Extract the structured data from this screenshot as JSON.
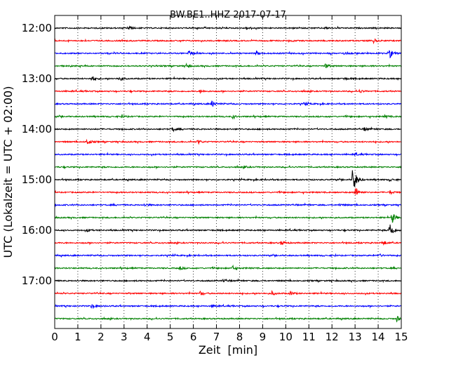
{
  "chart_data": {
    "type": "line",
    "title": "BW.BE1..HHZ 2017-07-17",
    "xlabel": "Zeit  [min]",
    "ylabel": "UTC (Lokalzeit = UTC + 02:00)",
    "xlim": [
      0,
      15
    ],
    "x_ticks": [
      "0",
      "1",
      "2",
      "3",
      "4",
      "5",
      "6",
      "7",
      "8",
      "9",
      "10",
      "11",
      "12",
      "13",
      "14",
      "15"
    ],
    "y_tick_labels": [
      "12:00",
      "13:00",
      "14:00",
      "15:00",
      "16:00",
      "17:00"
    ],
    "traces_per_hour": 4,
    "trace_interval_minutes": 15,
    "grid": "vertical-dotted",
    "series_colors": [
      "#000000",
      "#ff0000",
      "#0000ff",
      "#008000"
    ],
    "traces": [
      {
        "start": "12:00",
        "events": [
          {
            "t": 3.2,
            "amp": 0.35
          },
          {
            "t": 8.3,
            "amp": 0.2
          },
          {
            "t": 11.7,
            "amp": 0.2
          }
        ]
      },
      {
        "start": "12:15",
        "events": [
          {
            "t": 13.8,
            "amp": 0.3
          }
        ]
      },
      {
        "start": "12:30",
        "events": [
          {
            "t": 5.8,
            "amp": 0.45
          },
          {
            "t": 8.7,
            "amp": 0.3
          },
          {
            "t": 12.5,
            "amp": 0.2
          },
          {
            "t": 14.5,
            "amp": 0.7
          }
        ]
      },
      {
        "start": "12:45",
        "events": [
          {
            "t": 5.7,
            "amp": 0.25
          },
          {
            "t": 11.7,
            "amp": 0.4
          }
        ]
      },
      {
        "start": "13:00",
        "events": [
          {
            "t": 1.6,
            "amp": 0.5
          },
          {
            "t": 2.8,
            "amp": 0.35
          },
          {
            "t": 12.5,
            "amp": 0.25
          }
        ]
      },
      {
        "start": "13:15",
        "events": [
          {
            "t": 6.3,
            "amp": 0.25
          },
          {
            "t": 13.2,
            "amp": 0.25
          }
        ]
      },
      {
        "start": "13:30",
        "events": [
          {
            "t": 6.8,
            "amp": 0.5
          },
          {
            "t": 10.8,
            "amp": 0.25
          }
        ]
      },
      {
        "start": "13:45",
        "events": [
          {
            "t": 2.9,
            "amp": 0.2
          },
          {
            "t": 7.7,
            "amp": 0.25
          },
          {
            "t": 14.3,
            "amp": 0.25
          }
        ]
      },
      {
        "start": "14:00",
        "events": [
          {
            "t": 5.1,
            "amp": 0.35
          },
          {
            "t": 13.4,
            "amp": 0.25
          }
        ]
      },
      {
        "start": "14:15",
        "events": [
          {
            "t": 1.4,
            "amp": 0.55
          },
          {
            "t": 6.2,
            "amp": 0.3
          }
        ]
      },
      {
        "start": "14:30",
        "events": [
          {
            "t": 13.0,
            "amp": 0.2
          }
        ]
      },
      {
        "start": "14:45",
        "events": [
          {
            "t": 8.2,
            "amp": 0.15
          }
        ]
      },
      {
        "start": "15:00",
        "events": [
          {
            "t": 12.9,
            "amp": 2.5
          },
          {
            "t": 14.5,
            "amp": 0.2
          }
        ]
      },
      {
        "start": "15:15",
        "events": [
          {
            "t": 13.0,
            "amp": 0.9
          },
          {
            "t": 14.5,
            "amp": 0.3
          }
        ]
      },
      {
        "start": "15:30",
        "events": [
          {
            "t": 3.9,
            "amp": 0.2
          },
          {
            "t": 12.3,
            "amp": 0.2
          }
        ]
      },
      {
        "start": "15:45",
        "events": [
          {
            "t": 14.6,
            "amp": 0.9
          }
        ]
      },
      {
        "start": "16:00",
        "events": [
          {
            "t": 1.4,
            "amp": 0.2
          },
          {
            "t": 14.5,
            "amp": 1.5
          }
        ]
      },
      {
        "start": "16:15",
        "events": [
          {
            "t": 9.8,
            "amp": 0.35
          },
          {
            "t": 14.2,
            "amp": 0.4
          }
        ]
      },
      {
        "start": "16:30",
        "events": [
          {
            "t": 14.0,
            "amp": 0.35
          }
        ]
      },
      {
        "start": "16:45",
        "events": [
          {
            "t": 5.4,
            "amp": 0.3
          },
          {
            "t": 7.7,
            "amp": 0.35
          }
        ]
      },
      {
        "start": "17:00",
        "events": [
          {
            "t": 7.3,
            "amp": 0.25
          }
        ]
      },
      {
        "start": "17:15",
        "events": [
          {
            "t": 6.3,
            "amp": 0.3
          },
          {
            "t": 9.4,
            "amp": 0.3
          },
          {
            "t": 10.2,
            "amp": 0.3
          }
        ]
      },
      {
        "start": "17:30",
        "events": [
          {
            "t": 1.6,
            "amp": 0.35
          },
          {
            "t": 6.8,
            "amp": 0.2
          }
        ]
      },
      {
        "start": "17:45",
        "events": [
          {
            "t": 14.8,
            "amp": 0.45
          }
        ]
      }
    ]
  }
}
